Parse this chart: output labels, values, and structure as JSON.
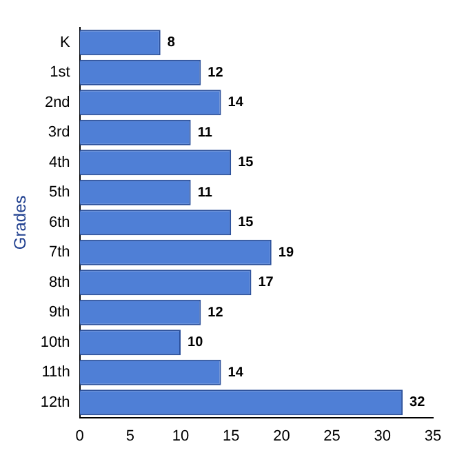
{
  "chart_data": {
    "type": "bar",
    "orientation": "horizontal",
    "ylabel": "Grades",
    "categories": [
      "K",
      "1st",
      "2nd",
      "3rd",
      "4th",
      "5th",
      "6th",
      "7th",
      "8th",
      "9th",
      "10th",
      "11th",
      "12th"
    ],
    "values": [
      8,
      12,
      14,
      11,
      15,
      11,
      15,
      19,
      17,
      12,
      10,
      14,
      32
    ],
    "color": "#4f7fd6",
    "xlim": [
      0,
      35
    ],
    "xticks": [
      0,
      5,
      10,
      15,
      20,
      25,
      30,
      35
    ],
    "grid": false,
    "legend": false,
    "data_labels": true
  }
}
